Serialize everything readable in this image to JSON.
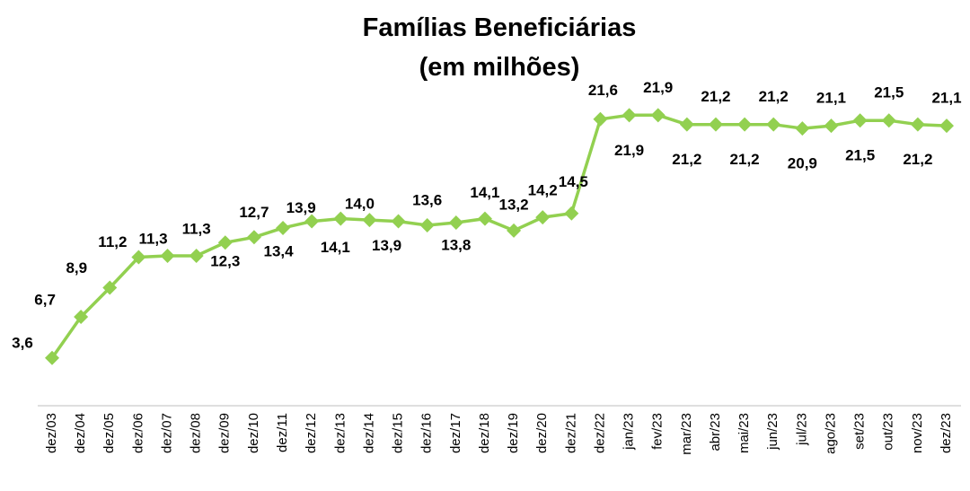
{
  "chart_data": {
    "type": "line",
    "title": [
      "Famílias Beneficiárias",
      "(em milhões)"
    ],
    "xlabel": "",
    "ylabel": "",
    "ylim": [
      0,
      25
    ],
    "grid": false,
    "legend": "none",
    "line_color": "#92D050",
    "marker": "diamond",
    "categories": [
      "dez/03",
      "dez/04",
      "dez/05",
      "dez/06",
      "dez/07",
      "dez/08",
      "dez/09",
      "dez/10",
      "dez/11",
      "dez/12",
      "dez/13",
      "dez/14",
      "dez/15",
      "dez/16",
      "dez/17",
      "dez/18",
      "dez/19",
      "dez/20",
      "dez/21",
      "dez/22",
      "jan/23",
      "fev/23",
      "mar/23",
      "abr/23",
      "mai/23",
      "jun/23",
      "jul/23",
      "ago/23",
      "set/23",
      "out/23",
      "nov/23",
      "dez/23"
    ],
    "values": [
      3.6,
      6.7,
      8.9,
      11.2,
      11.3,
      11.3,
      12.3,
      12.7,
      13.4,
      13.9,
      14.1,
      14.0,
      13.9,
      13.6,
      13.8,
      14.1,
      13.2,
      14.2,
      14.5,
      21.6,
      21.9,
      21.9,
      21.2,
      21.2,
      21.2,
      21.2,
      20.9,
      21.1,
      21.5,
      21.5,
      21.2,
      21.1
    ],
    "data_labels": [
      "3,6",
      "6,7",
      "8,9",
      "11,2",
      "11,3",
      "11,3",
      "12,3",
      "12,7",
      "13,4",
      "13,9",
      "14,1",
      "14,0",
      "13,9",
      "13,6",
      "13,8",
      "14,1",
      "13,2",
      "14,2",
      "14,5",
      "21,6",
      "21,9",
      "21,9",
      "21,2",
      "21,2",
      "21,2",
      "21,2",
      "20,9",
      "21,1",
      "21,5",
      "21,5",
      "21,2",
      "21,1"
    ]
  }
}
